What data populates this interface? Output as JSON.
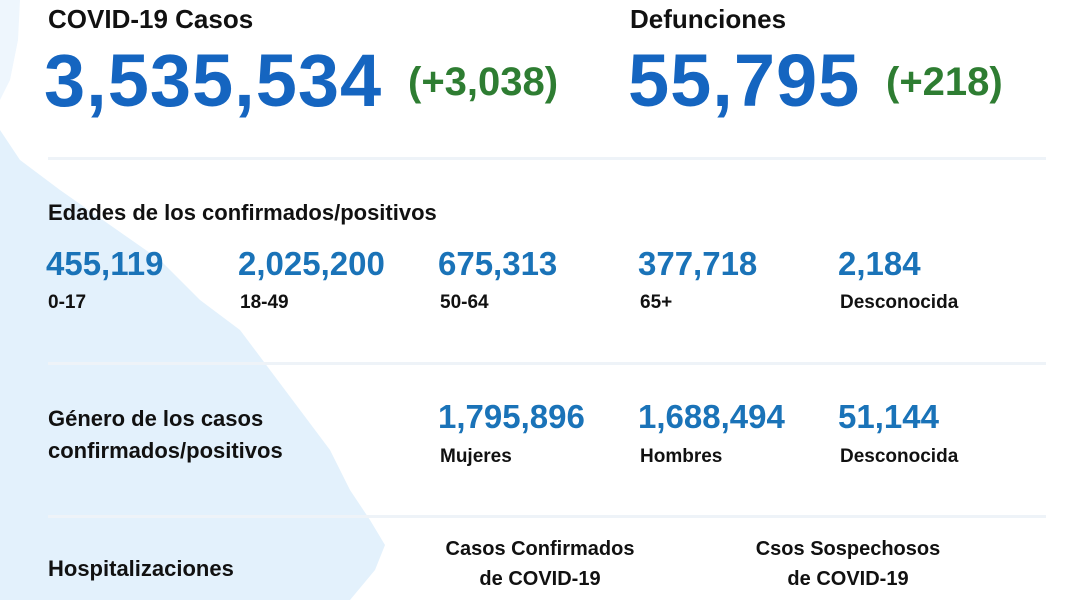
{
  "cases": {
    "title": "COVID-19 Casos",
    "total": "3,535,534",
    "change": "(+3,038)"
  },
  "deaths": {
    "title": "Defunciones",
    "total": "55,795",
    "change": "(+218)"
  },
  "ages": {
    "title": "Edades de los confirmados/positivos",
    "groups": [
      {
        "value": "455,119",
        "label": "0-17"
      },
      {
        "value": "2,025,200",
        "label": "18-49"
      },
      {
        "value": "675,313",
        "label": "50-64"
      },
      {
        "value": "377,718",
        "label": "65+"
      },
      {
        "value": "2,184",
        "label": "Desconocida"
      }
    ]
  },
  "gender": {
    "title_line1": "Género de los casos",
    "title_line2": "confirmados/positivos",
    "groups": [
      {
        "value": "1,795,896",
        "label": "Mujeres"
      },
      {
        "value": "1,688,494",
        "label": "Hombres"
      },
      {
        "value": "51,144",
        "label": "Desconocida"
      }
    ]
  },
  "hospitalizations": {
    "title": "Hospitalizaciones",
    "confirmed_line1": "Casos Confirmados",
    "confirmed_line2": "de COVID-19",
    "suspected_line1": "Csos Sospechosos",
    "suspected_line2": "de COVID-19"
  },
  "colors": {
    "primary_blue": "#1565c0",
    "green": "#2e7d32",
    "map_fill": "#e3f1fc"
  }
}
